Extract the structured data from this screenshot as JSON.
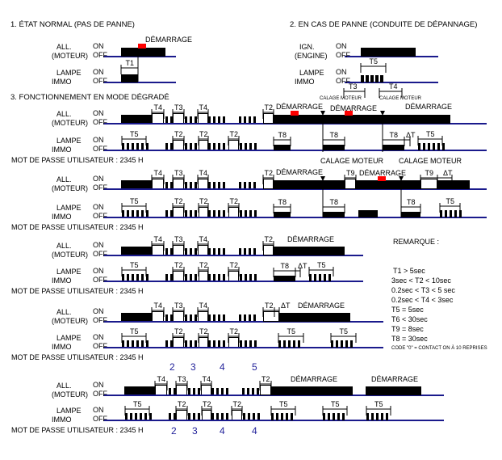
{
  "sections": {
    "s1": "1. ÉTAT NORMAL (PAS DE PANNE)",
    "s2": "2. EN CAS DE PANNE (CONDUITE DE DÉPANNAGE)",
    "s3": "3. FONCTIONNEMENT EN MODE DÉGRADÉ"
  },
  "labels": {
    "all": "ALL.",
    "moteur": "(MOTEUR)",
    "ign": "IGN.",
    "engine": "(ENGINE)",
    "lampe": "LAMPE",
    "immo": "IMMO",
    "on": "ON",
    "off": "OFF",
    "password": "MOT DE PASSE UTILISATEUR : 2345 H",
    "demarrage": "DÉMARRAGE",
    "calage": "CALAGE MOTEUR",
    "delta_t": "ΔT",
    "t1": "T1",
    "t2": "T2",
    "t3": "T3",
    "t4": "T4",
    "t5": "T5",
    "t8": "T8",
    "t9": "T9"
  },
  "digits": {
    "top": [
      "2",
      "3",
      "4",
      "5"
    ],
    "bottom": [
      "2",
      "3",
      "4",
      "4"
    ]
  },
  "remarks": {
    "title": "REMARQUE :",
    "items": [
      "T1 > 5sec",
      "3sec < T2 < 10sec",
      "0.2sec < T3 < 5 sec",
      "0.2sec < T4 < 3sec",
      "T5 = 5sec",
      "T6 < 30sec",
      "T9 = 8sec",
      "T8 = 30sec"
    ],
    "note": "CODE \"0\" = CONTACT ON À 10 REPRISES"
  },
  "colors": {
    "signal": "#000000",
    "baseline": "#1a1a8c",
    "start_marker": "#ff0000",
    "digits": "#22229a"
  }
}
